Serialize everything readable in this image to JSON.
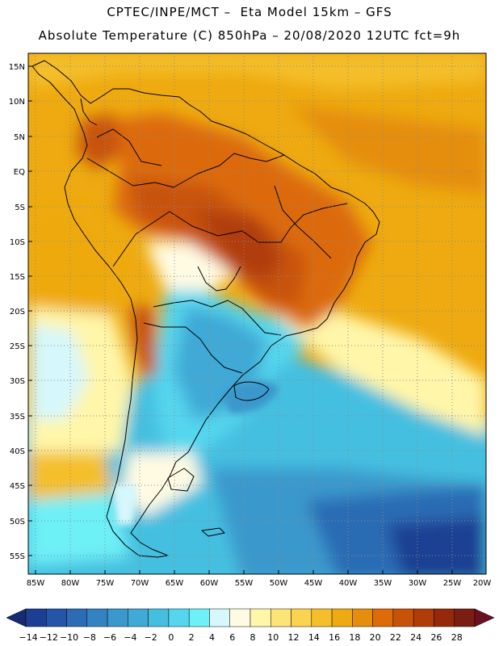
{
  "title_line1": "CPTEC/INPE/MCT –  Eta Model 15km – GFS",
  "title_line2": "Absolute Temperature (C) 850hPa – 20/08/2020 12UTC fct=9h",
  "lat_labels": [
    "15N",
    "10N",
    "5N",
    "EQ",
    "5S",
    "10S",
    "15S",
    "20S",
    "25S",
    "30S",
    "35S",
    "40S",
    "45S",
    "50S",
    "55S"
  ],
  "lon_labels": [
    "85W",
    "80W",
    "75W",
    "70W",
    "65W",
    "60W",
    "55W",
    "50W",
    "45W",
    "40W",
    "35W",
    "30W",
    "25W",
    "20W"
  ],
  "colorbar": {
    "labels": [
      "-14",
      "-12",
      "-10",
      "-8",
      "-6",
      "-4",
      "-2",
      "0",
      "2",
      "4",
      "6",
      "8",
      "10",
      "12",
      "14",
      "16",
      "18",
      "20",
      "22",
      "24",
      "26",
      "28"
    ],
    "colors": [
      "#1d3f93",
      "#2456a8",
      "#2c6cb4",
      "#3383c2",
      "#3a98cc",
      "#40a9d6",
      "#45bfe0",
      "#55d6ee",
      "#6ef0f7",
      "#d6f7fb",
      "#fffbe3",
      "#fff6a9",
      "#fde477",
      "#f9d450",
      "#f4bf2a",
      "#eeaa10",
      "#e58e0b",
      "#dc6b08",
      "#c85308",
      "#b03d08",
      "#952a0b",
      "#7a1e12"
    ],
    "under_color": "#152b72",
    "over_color": "#6b0f23"
  }
}
